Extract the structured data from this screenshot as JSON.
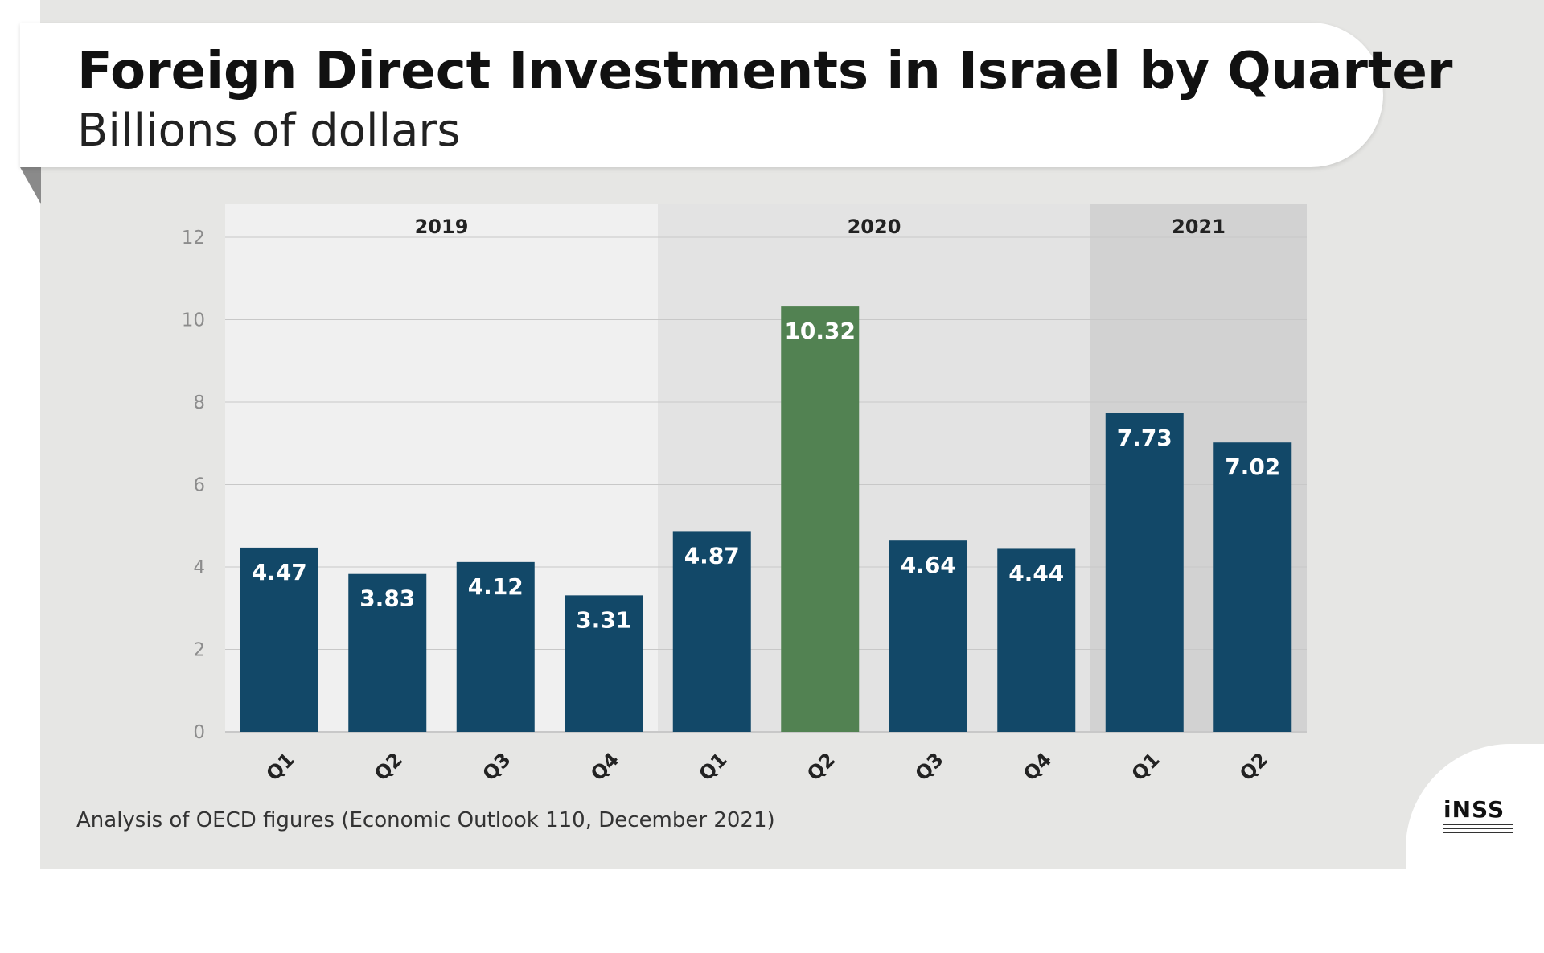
{
  "header": {
    "title": "Foreign Direct Investments in Israel by Quarter",
    "subtitle": "Billions of dollars"
  },
  "footer": {
    "source": "Analysis of OECD figures (Economic Outlook 110, December 2021)"
  },
  "logo": {
    "text": "iNSS"
  },
  "colors": {
    "bar_default": "#124868",
    "bar_highlight": "#528252",
    "band_2019": "#f0f0f0",
    "band_2020": "#e3e3e3",
    "band_2021": "#d2d2d2",
    "gridline": "#c8c8c8",
    "axis_text": "#8c8c8c",
    "label_text": "#ffffff",
    "tick_text": "#222222"
  },
  "chart_data": {
    "type": "bar",
    "title": "Foreign Direct Investments in Israel by Quarter",
    "subtitle": "Billions of dollars",
    "xlabel": "",
    "ylabel": "",
    "ylim": [
      0,
      12.8
    ],
    "yticks": [
      0,
      2,
      4,
      6,
      8,
      10,
      12
    ],
    "grid": true,
    "groups": [
      {
        "label": "2019",
        "start": 0,
        "end": 3
      },
      {
        "label": "2020",
        "start": 4,
        "end": 7
      },
      {
        "label": "2021",
        "start": 8,
        "end": 9
      }
    ],
    "categories": [
      "Q1",
      "Q2",
      "Q3",
      "Q4",
      "Q1",
      "Q2",
      "Q3",
      "Q4",
      "Q1",
      "Q2"
    ],
    "values": [
      4.47,
      3.83,
      4.12,
      3.31,
      4.87,
      10.32,
      4.64,
      4.44,
      7.73,
      7.02
    ],
    "value_labels": [
      "4.47",
      "3.83",
      "4.12",
      "3.31",
      "4.87",
      "10.32",
      "4.64",
      "4.44",
      "7.73",
      "7.02"
    ],
    "highlight_index": 5
  }
}
